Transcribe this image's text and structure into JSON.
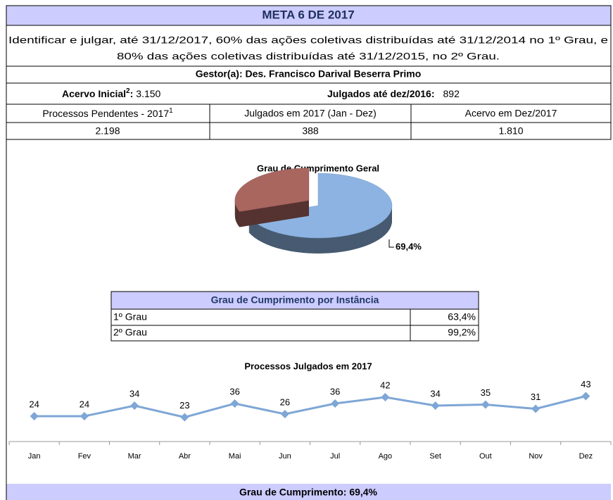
{
  "title": "META 6 DE 2017",
  "description": [
    "Identificar e julgar, até 31/12/2017, 60% das ações coletivas distribuídas até 31/12/2014 no 1º Grau, e",
    "80% das ações coletivas distribuídas até 31/12/2015, no 2º Grau."
  ],
  "gestor": "Gestor(a):  Des. Francisco Darival Beserra Primo",
  "acervo_inicial": {
    "label": "Acervo Inicial",
    "note": "2",
    "separator": ":",
    "value": "3.150"
  },
  "julgados_2016": {
    "label": "Julgados até dez/2016:",
    "value": "892"
  },
  "table": {
    "headers": [
      {
        "text": "Processos Pendentes - 2017",
        "note": "1"
      },
      "Julgados em 2017 (Jan - Dez)",
      "Acervo em Dez/2017"
    ],
    "values": [
      "2.198",
      "388",
      "1.810"
    ]
  },
  "instancia": {
    "title": "Grau de Cumprimento por Instância",
    "rows": [
      [
        "1º Grau",
        "63,4%"
      ],
      [
        "2º Grau",
        "99,2%"
      ]
    ]
  },
  "footer": "Grau de Cumprimento: 69,4%",
  "chart_data": [
    {
      "type": "pie",
      "title": "Grau de Cumprimento Geral",
      "values": [
        69.4,
        30.6
      ],
      "value_labels": [
        "69,4%",
        null
      ],
      "colors": [
        "#8db3e2",
        "#a9665f"
      ]
    },
    {
      "type": "line",
      "title": "Processos Julgados em 2017",
      "categories": [
        "Jan",
        "Fev",
        "Mar",
        "Abr",
        "Mai",
        "Jun",
        "Jul",
        "Ago",
        "Set",
        "Out",
        "Nov",
        "Dez"
      ],
      "values": [
        24,
        24,
        34,
        23,
        36,
        26,
        36,
        42,
        34,
        35,
        31,
        43
      ],
      "color": "#7ea6d6",
      "ylim": [
        0,
        60
      ]
    }
  ]
}
